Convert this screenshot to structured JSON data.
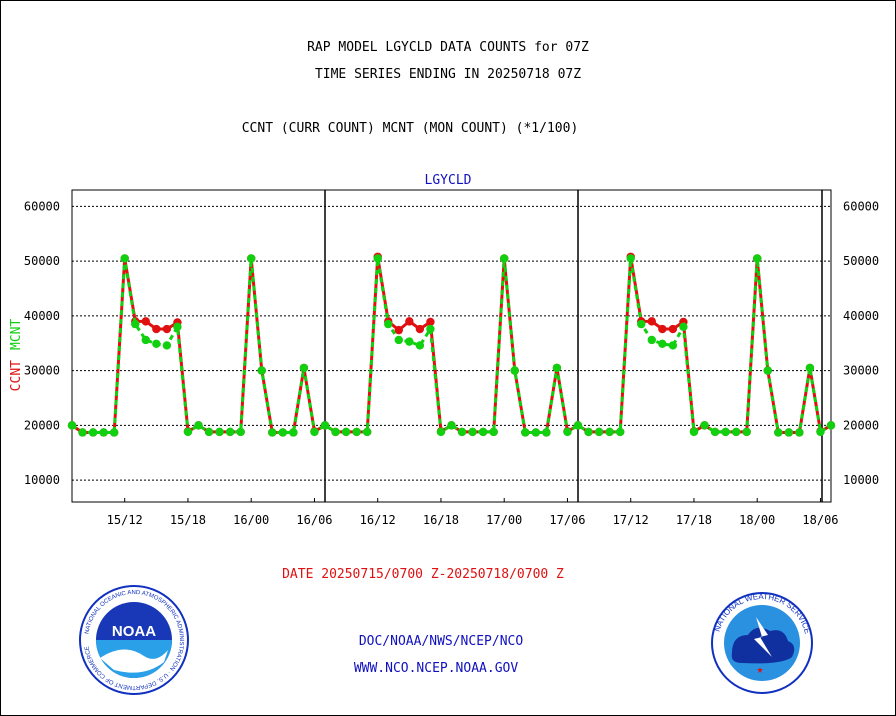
{
  "header": {
    "title_line1": "RAP MODEL LGYCLD DATA COUNTS for 07Z",
    "title_line2": "TIME SERIES ENDING IN 20250718 07Z",
    "subtitle": "CCNT (CURR COUNT) MCNT (MON COUNT) (*1/100)"
  },
  "footer": {
    "date_range": "DATE 20250715/0700 Z-20250718/0700 Z",
    "org": "DOC/NOAA/NWS/NCEP/NCO",
    "url": "WWW.NCO.NCEP.NOAA.GOV",
    "noaa_logo_text": "NOAA",
    "noaa_seal_text": "NATIONAL OCEANIC AND ATMOSPHERIC ADMINISTRATION · U.S. DEPARTMENT OF COMMERCE",
    "nws_seal_text": "NATIONAL WEATHER SERVICE"
  },
  "chart_data": {
    "type": "line",
    "title": "LGYCLD",
    "ylabel_parts": [
      "CCNT",
      "MCNT"
    ],
    "colors": {
      "CCNT": "#e01010",
      "MCNT": "#10d010",
      "title": "#1010c0"
    },
    "ylim": [
      6000,
      63000
    ],
    "yticks": [
      10000,
      20000,
      30000,
      40000,
      50000,
      60000
    ],
    "ytick_labels": [
      "10000",
      "20000",
      "30000",
      "40000",
      "50000",
      "60000"
    ],
    "x_range_hours": [
      7,
      79
    ],
    "x_tick_hours": [
      12,
      18,
      24,
      30,
      36,
      42,
      48,
      54,
      60,
      66,
      72,
      78
    ],
    "x_tick_labels": [
      "15/12",
      "15/18",
      "16/00",
      "16/06",
      "16/12",
      "16/18",
      "17/00",
      "17/06",
      "17/12",
      "17/18",
      "18/00",
      "18/06"
    ],
    "day_boundary_hours": [
      31,
      55,
      79
    ],
    "grid": true,
    "series": [
      {
        "name": "CCNT",
        "x": [
          7,
          8,
          9,
          10,
          11,
          12,
          13,
          14,
          15,
          16,
          17,
          18,
          19,
          20,
          21,
          22,
          23,
          24,
          25,
          26,
          27,
          28,
          29,
          30,
          31,
          32,
          33,
          34,
          35,
          36,
          37,
          38,
          39,
          40,
          41,
          42,
          43,
          44,
          45,
          46,
          47,
          48,
          49,
          50,
          51,
          52,
          53,
          54,
          55,
          56,
          57,
          58,
          59,
          60,
          61,
          62,
          63,
          64,
          65,
          66,
          67,
          68,
          69,
          70,
          71,
          72,
          73,
          74,
          75,
          76,
          77,
          78,
          79
        ],
        "values": [
          20000,
          18700,
          18700,
          18700,
          18700,
          50500,
          39000,
          39000,
          37600,
          37600,
          38800,
          18900,
          20000,
          18800,
          18800,
          18800,
          18800,
          50500,
          30000,
          18700,
          18700,
          18700,
          30500,
          18900,
          20000,
          18800,
          18800,
          18800,
          18800,
          50800,
          39000,
          37400,
          39000,
          37600,
          38900,
          18900,
          20000,
          18800,
          18800,
          18800,
          18800,
          50500,
          30000,
          18700,
          18700,
          18700,
          30500,
          18900,
          20000,
          18800,
          18800,
          18800,
          18800,
          50800,
          39000,
          39000,
          37600,
          37600,
          38900,
          18900,
          20000,
          18800,
          18800,
          18800,
          18800,
          50500,
          30000,
          18700,
          18700,
          18700,
          30500,
          18900,
          20000
        ]
      },
      {
        "name": "MCNT",
        "x": [
          7,
          8,
          9,
          10,
          11,
          12,
          13,
          14,
          15,
          16,
          17,
          18,
          19,
          20,
          21,
          22,
          23,
          24,
          25,
          26,
          27,
          28,
          29,
          30,
          31,
          32,
          33,
          34,
          35,
          36,
          37,
          38,
          39,
          40,
          41,
          42,
          43,
          44,
          45,
          46,
          47,
          48,
          49,
          50,
          51,
          52,
          53,
          54,
          55,
          56,
          57,
          58,
          59,
          60,
          61,
          62,
          63,
          64,
          65,
          66,
          67,
          68,
          69,
          70,
          71,
          72,
          73,
          74,
          75,
          76,
          77,
          78,
          79
        ],
        "values": [
          20000,
          18700,
          18700,
          18700,
          18700,
          50500,
          38500,
          35600,
          34900,
          34600,
          38000,
          18800,
          20000,
          18800,
          18800,
          18800,
          18800,
          50500,
          30000,
          18700,
          18700,
          18700,
          30500,
          18800,
          20000,
          18800,
          18800,
          18800,
          18800,
          50500,
          38500,
          35600,
          35300,
          34600,
          37600,
          18800,
          20000,
          18800,
          18800,
          18800,
          18800,
          50500,
          30000,
          18700,
          18700,
          18700,
          30500,
          18800,
          20000,
          18800,
          18800,
          18800,
          18800,
          50500,
          38500,
          35600,
          34900,
          34600,
          38000,
          18800,
          20000,
          18800,
          18800,
          18800,
          18800,
          50500,
          30000,
          18700,
          18700,
          18700,
          30500,
          18800,
          20000
        ]
      }
    ]
  }
}
